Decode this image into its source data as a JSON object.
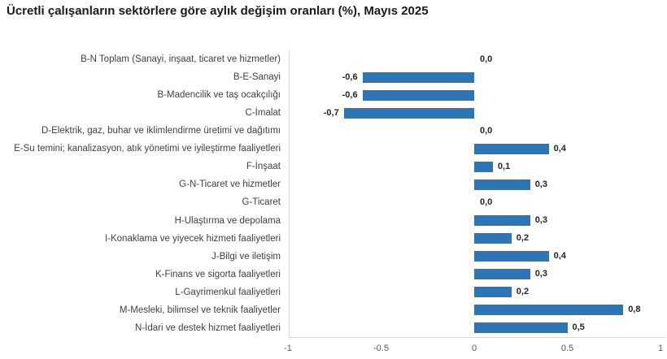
{
  "chart_data": {
    "type": "bar",
    "orientation": "horizontal",
    "title": "Ücretli çalışanların sektörlere göre aylık değişim oranları (%), Mayıs 2025",
    "categories": [
      "B-N Toplam (Sanayi, inşaat, ticaret ve hizmetler)",
      "B-E-Sanayi",
      "B-Madencilik ve taş ocakçılığı",
      "C-İmalat",
      "D-Elektrik, gaz, buhar ve iklimlendirme üretimi ve dağıtımı",
      "E-Su temini; kanalizasyon, atık yönetimi ve iyileştirme faaliyetleri",
      "F-İnşaat",
      "G-N-Ticaret ve hizmetler",
      "G-Ticaret",
      "H-Ulaştırma ve depolama",
      "I-Konaklama ve yiyecek hizmeti faaliyetleri",
      "J-Bilgi ve iletişim",
      "K-Finans ve sigorta faaliyetleri",
      "L-Gayrimenkul faaliyetleri",
      "M-Mesleki, bilimsel ve teknik faaliyetler",
      "N-İdari ve destek hizmet faaliyetleri"
    ],
    "values": [
      0.0,
      -0.6,
      -0.6,
      -0.7,
      0.0,
      0.4,
      0.1,
      0.3,
      0.0,
      0.3,
      0.2,
      0.4,
      0.3,
      0.2,
      0.8,
      0.5
    ],
    "value_labels": [
      "0,0",
      "-0,6",
      "-0,6",
      "-0,7",
      "0,0",
      "0,4",
      "0,1",
      "0,3",
      "0,0",
      "0,3",
      "0,2",
      "0,4",
      "0,3",
      "0,2",
      "0,8",
      "0,5"
    ],
    "xlabel": "",
    "ylabel": "",
    "xlim": [
      -1,
      1
    ],
    "x_tick_values": [
      -1,
      -0.5,
      0,
      0.5,
      1
    ],
    "x_ticks": [
      "-1",
      "-0.5",
      "0",
      "0.5",
      "1"
    ],
    "bar_color": "#2e75b6",
    "axis_line_color": "#d9d9d9",
    "grid": false,
    "legend": null
  }
}
